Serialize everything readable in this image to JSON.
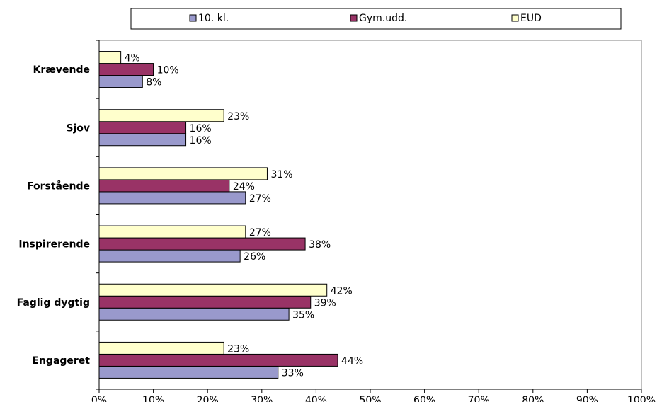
{
  "chart_data": {
    "type": "bar",
    "orientation": "horizontal",
    "categories": [
      "Krævende",
      "Sjov",
      "Forstående",
      "Inspirerende",
      "Faglig dygtig",
      "Engageret"
    ],
    "series": [
      {
        "name": "10. kl.",
        "color": "#9999cc",
        "values": [
          8,
          16,
          27,
          26,
          35,
          33
        ]
      },
      {
        "name": "Gym.udd.",
        "color": "#993366",
        "values": [
          10,
          16,
          24,
          38,
          39,
          44
        ]
      },
      {
        "name": "EUD",
        "color": "#ffffcc",
        "values": [
          4,
          23,
          31,
          27,
          42,
          23
        ]
      }
    ],
    "xlim": [
      0,
      100
    ],
    "x_ticks": [
      0,
      10,
      20,
      30,
      40,
      50,
      60,
      70,
      80,
      90,
      100
    ],
    "value_suffix": "%",
    "grid": false,
    "legend_position": "top",
    "title": "",
    "xlabel": "",
    "ylabel": ""
  }
}
